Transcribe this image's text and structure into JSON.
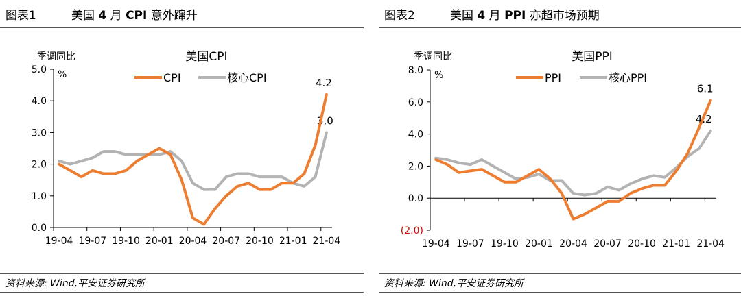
{
  "colors": {
    "primary": "#ED7D31",
    "secondary": "#B3B3B3",
    "negative_label": "#E00000",
    "axis": "#000000"
  },
  "panels": [
    {
      "fig_label": "图表1",
      "title_pre": "美国",
      "title_num": "4",
      "title_mid": "月",
      "title_key": "CPI",
      "title_post": "意外蹿升",
      "source": "资料来源: Wind,平安证券研究所",
      "chart_data": {
        "type": "line",
        "title": "美国CPI",
        "ylabel": "季调同比",
        "yunit": "%",
        "ylim": [
          0,
          5
        ],
        "yticks": [
          0,
          1,
          2,
          3,
          4,
          5
        ],
        "ytick_labels": [
          "0.0",
          "1.0",
          "2.0",
          "3.0",
          "4.0",
          "5.0"
        ],
        "negative_tick_label": "",
        "x": [
          "19-04",
          "19-05",
          "19-06",
          "19-07",
          "19-08",
          "19-09",
          "19-10",
          "19-11",
          "19-12",
          "20-01",
          "20-02",
          "20-03",
          "20-04",
          "20-05",
          "20-06",
          "20-07",
          "20-08",
          "20-09",
          "20-10",
          "20-11",
          "20-12",
          "21-01",
          "21-02",
          "21-03",
          "21-04"
        ],
        "xtick_labels": [
          "19-04",
          "19-07",
          "19-10",
          "20-01",
          "20-04",
          "20-07",
          "20-10",
          "21-01",
          "21-04"
        ],
        "legend_position": "top-right",
        "series": [
          {
            "name": "CPI",
            "role": "primary",
            "values": [
              2.0,
              1.8,
              1.6,
              1.8,
              1.7,
              1.7,
              1.8,
              2.1,
              2.3,
              2.5,
              2.3,
              1.5,
              0.3,
              0.1,
              0.6,
              1.0,
              1.3,
              1.4,
              1.2,
              1.2,
              1.4,
              1.4,
              1.7,
              2.6,
              4.2
            ],
            "end_label": "4.2"
          },
          {
            "name": "核心CPI",
            "role": "secondary",
            "values": [
              2.1,
              2.0,
              2.1,
              2.2,
              2.4,
              2.4,
              2.3,
              2.3,
              2.3,
              2.3,
              2.4,
              2.1,
              1.4,
              1.2,
              1.2,
              1.6,
              1.7,
              1.7,
              1.6,
              1.6,
              1.6,
              1.4,
              1.3,
              1.6,
              3.0
            ],
            "end_label": "3.0"
          }
        ]
      }
    },
    {
      "fig_label": "图表2",
      "title_pre": "美国",
      "title_num": "4",
      "title_mid": "月",
      "title_key": "PPI",
      "title_post": "亦超市场预期",
      "source": "资料来源: Wind,平安证券研究所",
      "chart_data": {
        "type": "line",
        "title": "美国PPI",
        "ylabel": "季调同比",
        "yunit": "%",
        "ylim": [
          -2,
          8
        ],
        "yticks": [
          -2,
          0,
          2,
          4,
          6,
          8
        ],
        "ytick_labels": [
          "(2.0)",
          "0.0",
          "2.0",
          "4.0",
          "6.0",
          "8.0"
        ],
        "negative_tick_label": "(2.0)",
        "x": [
          "19-04",
          "19-05",
          "19-06",
          "19-07",
          "19-08",
          "19-09",
          "19-10",
          "19-11",
          "19-12",
          "20-01",
          "20-02",
          "20-03",
          "20-04",
          "20-05",
          "20-06",
          "20-07",
          "20-08",
          "20-09",
          "20-10",
          "20-11",
          "20-12",
          "21-01",
          "21-02",
          "21-03",
          "21-04"
        ],
        "xtick_labels": [
          "19-04",
          "19-07",
          "19-10",
          "20-01",
          "20-04",
          "20-07",
          "20-10",
          "21-01",
          "21-04"
        ],
        "legend_position": "top-right",
        "series": [
          {
            "name": "PPI",
            "role": "primary",
            "values": [
              2.4,
              2.1,
              1.6,
              1.7,
              1.8,
              1.4,
              1.0,
              1.0,
              1.4,
              1.8,
              1.2,
              0.3,
              -1.3,
              -1.0,
              -0.6,
              -0.2,
              -0.2,
              0.3,
              0.6,
              0.8,
              0.8,
              1.7,
              2.8,
              4.4,
              6.1
            ],
            "end_label": "6.1"
          },
          {
            "name": "核心PPI",
            "role": "secondary",
            "values": [
              2.5,
              2.4,
              2.2,
              2.1,
              2.4,
              2.0,
              1.6,
              1.2,
              1.3,
              1.5,
              1.1,
              1.1,
              0.3,
              0.2,
              0.3,
              0.7,
              0.5,
              0.9,
              1.2,
              1.4,
              1.3,
              1.9,
              2.6,
              3.1,
              4.2
            ],
            "end_label": "4.2"
          }
        ]
      }
    }
  ]
}
